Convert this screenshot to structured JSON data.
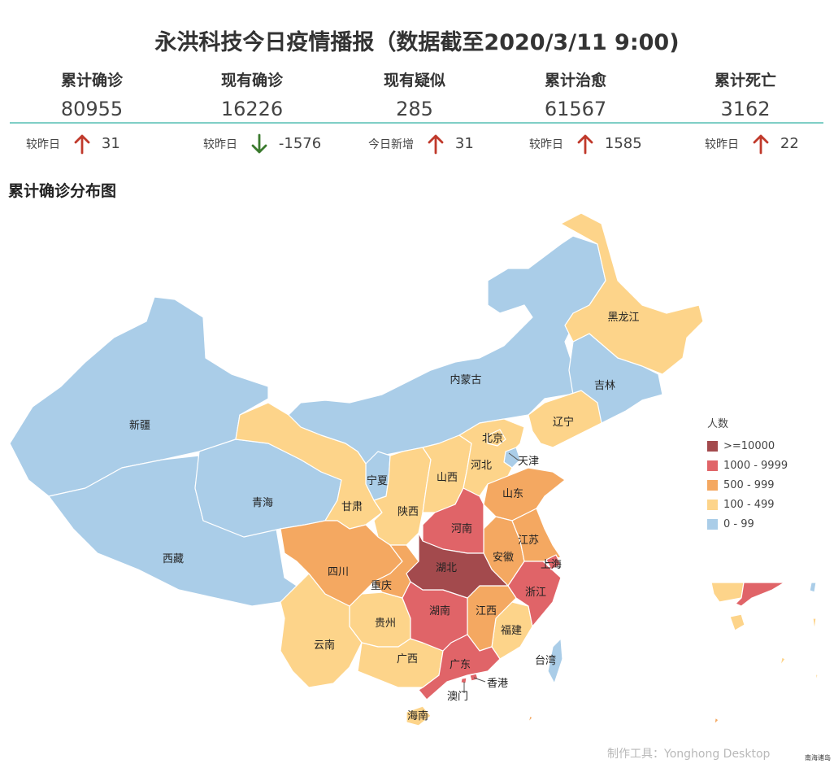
{
  "title": "永洪科技今日疫情播报（数据截至2020/3/11 9:00)",
  "stats": [
    {
      "label": "累计确诊",
      "value": "80955",
      "delta_label": "较昨日",
      "delta_dir": "up",
      "delta": "31"
    },
    {
      "label": "现有确诊",
      "value": "16226",
      "delta_label": "较昨日",
      "delta_dir": "down",
      "delta": "-1576"
    },
    {
      "label": "现有疑似",
      "value": "285",
      "delta_label": "今日新增",
      "delta_dir": "up",
      "delta": "31"
    },
    {
      "label": "累计治愈",
      "value": "61567",
      "delta_label": "较昨日",
      "delta_dir": "up",
      "delta": "1585"
    },
    {
      "label": "累计死亡",
      "value": "3162",
      "delta_label": "较昨日",
      "delta_dir": "up",
      "delta": "22"
    }
  ],
  "colors": {
    "up": "#c0392b",
    "down": "#3b7a2e",
    "divider": "#7fcfc6"
  },
  "map": {
    "title": "累计确诊分布图",
    "legend_title": "人数",
    "legend": [
      {
        "label": ">=10000",
        "color": "#a34a4d"
      },
      {
        "label": "1000 - 9999",
        "color": "#e06468"
      },
      {
        "label": "500 - 999",
        "color": "#f4a861"
      },
      {
        "label": "100 - 499",
        "color": "#fdd48a"
      },
      {
        "label": "0 - 99",
        "color": "#aacde8"
      }
    ],
    "provinces": {
      "heilongjiang": "黑龙江",
      "jilin": "吉林",
      "liaoning": "辽宁",
      "neimenggu": "内蒙古",
      "xinjiang": "新疆",
      "xizang": "西藏",
      "qinghai": "青海",
      "gansu": "甘肃",
      "ningxia": "宁夏",
      "shaanxi": "陕西",
      "shanxi": "山西",
      "hebei": "河北",
      "beijing": "北京",
      "tianjin": "天津",
      "shandong": "山东",
      "henan": "河南",
      "hubei": "湖北",
      "sichuan": "四川",
      "chongqing": "重庆",
      "anhui": "安徽",
      "jiangsu": "江苏",
      "shanghai": "上海",
      "zhejiang": "浙江",
      "hunan": "湖南",
      "jiangxi": "江西",
      "guizhou": "贵州",
      "yunnan": "云南",
      "guangxi": "广西",
      "guangdong": "广东",
      "fujian": "福建",
      "taiwan": "台湾",
      "hongkong": "香港",
      "macau": "澳门",
      "hainan": "海南"
    },
    "credit": "制作工具：Yonghong Desktop",
    "sea_note": "南海诸岛"
  }
}
